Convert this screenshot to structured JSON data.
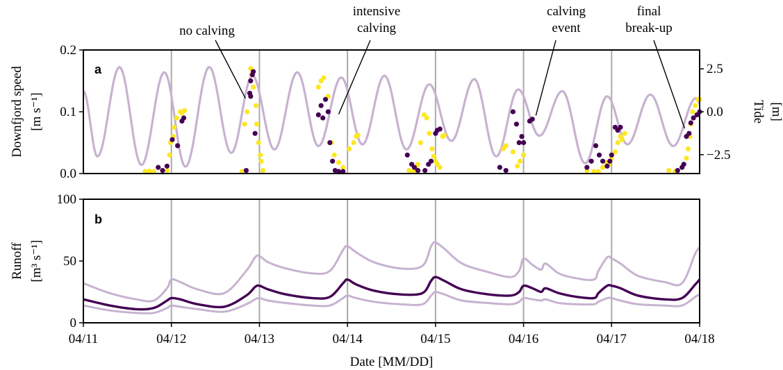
{
  "chart_data": [
    {
      "panel": "a",
      "type": "scatter",
      "xlabel": "",
      "ylabel": "Downfjord speed",
      "ylabel_unit": "[m s⁻¹]",
      "ylabel2": "Tide",
      "ylabel2_unit": "[m]",
      "xlim": [
        0,
        7
      ],
      "ylim": [
        0,
        0.2
      ],
      "y2lim": [
        -3.6,
        3.6
      ],
      "yticks": [
        "0.0",
        "0.1",
        "0.2"
      ],
      "y2ticks": [
        "−2.5",
        "0.0",
        "2.5"
      ],
      "grid": "vertical lines at day boundaries",
      "colors": {
        "tide": "#c7b2d0",
        "series_dark": "#440154",
        "series_yellow": "#fde725"
      },
      "tide_series": {
        "mean": 0.0,
        "half_period_days": 0.2588,
        "extrema": [
          [
            0.0,
            1.2
          ],
          [
            0.16,
            -2.6
          ],
          [
            0.41,
            2.6
          ],
          [
            0.66,
            -3.1
          ],
          [
            0.92,
            2.3
          ],
          [
            1.16,
            -3.2
          ],
          [
            1.43,
            2.6
          ],
          [
            1.68,
            -2.4
          ],
          [
            1.92,
            2.1
          ],
          [
            2.17,
            -2.2
          ],
          [
            2.43,
            2.3
          ],
          [
            2.67,
            -2.0
          ],
          [
            2.93,
            2.0
          ],
          [
            3.17,
            -1.9
          ],
          [
            3.42,
            2.1
          ],
          [
            3.67,
            -2.2
          ],
          [
            3.93,
            1.6
          ],
          [
            4.18,
            -1.7
          ],
          [
            4.44,
            1.9
          ],
          [
            4.69,
            -2.6
          ],
          [
            4.94,
            1.3
          ],
          [
            5.18,
            -1.4
          ],
          [
            5.44,
            1.2
          ],
          [
            5.7,
            -3.0
          ],
          [
            5.95,
            0.9
          ],
          [
            6.18,
            -1.9
          ],
          [
            6.44,
            1.0
          ],
          [
            6.7,
            -2.0
          ],
          [
            6.96,
            0.8
          ],
          [
            7.0,
            0.5
          ]
        ]
      },
      "series": [
        {
          "color": "dark",
          "points": [
            [
              0.85,
              0.01
            ],
            [
              0.9,
              0.005
            ],
            [
              0.95,
              0.012
            ],
            [
              1.01,
              0.055
            ],
            [
              1.07,
              0.045
            ],
            [
              1.12,
              0.085
            ],
            [
              1.14,
              0.09
            ],
            [
              1.85,
              0.005
            ],
            [
              1.89,
              0.13
            ],
            [
              1.9,
              0.125
            ],
            [
              1.9,
              0.15
            ],
            [
              1.92,
              0.16
            ],
            [
              1.93,
              0.165
            ],
            [
              1.95,
              0.065
            ],
            [
              2.67,
              0.095
            ],
            [
              2.7,
              0.11
            ],
            [
              2.72,
              0.09
            ],
            [
              2.75,
              0.12
            ],
            [
              2.78,
              0.1
            ],
            [
              2.8,
              0.05
            ],
            [
              2.83,
              0.02
            ],
            [
              2.86,
              0.005
            ],
            [
              2.9,
              0.002
            ],
            [
              2.95,
              0.003
            ],
            [
              3.68,
              0.03
            ],
            [
              3.73,
              0.015
            ],
            [
              3.76,
              0.01
            ],
            [
              3.8,
              0.005
            ],
            [
              3.88,
              0.005
            ],
            [
              3.92,
              0.015
            ],
            [
              3.95,
              0.02
            ],
            [
              4.0,
              0.065
            ],
            [
              4.02,
              0.07
            ],
            [
              4.05,
              0.072
            ],
            [
              4.73,
              0.01
            ],
            [
              4.8,
              0.005
            ],
            [
              4.88,
              0.1
            ],
            [
              4.92,
              0.08
            ],
            [
              4.95,
              0.05
            ],
            [
              4.98,
              0.06
            ],
            [
              5.0,
              0.05
            ],
            [
              5.07,
              0.085
            ],
            [
              5.1,
              0.088
            ],
            [
              5.72,
              0.01
            ],
            [
              5.77,
              0.02
            ],
            [
              5.82,
              0.045
            ],
            [
              5.86,
              0.03
            ],
            [
              5.9,
              0.02
            ],
            [
              5.95,
              0.012
            ],
            [
              5.98,
              0.02
            ],
            [
              6.0,
              0.03
            ],
            [
              6.04,
              0.075
            ],
            [
              6.07,
              0.07
            ],
            [
              6.1,
              0.075
            ],
            [
              6.75,
              0.005
            ],
            [
              6.8,
              0.01
            ],
            [
              6.82,
              0.015
            ],
            [
              6.85,
              0.06
            ],
            [
              6.88,
              0.065
            ],
            [
              6.9,
              0.082
            ],
            [
              6.93,
              0.09
            ],
            [
              6.97,
              0.095
            ],
            [
              7.0,
              0.1
            ]
          ]
        },
        {
          "color": "yellow",
          "points": [
            [
              0.7,
              0.002
            ],
            [
              0.75,
              0.004
            ],
            [
              0.8,
              0.003
            ],
            [
              0.95,
              0.005
            ],
            [
              0.98,
              0.03
            ],
            [
              0.99,
              0.05
            ],
            [
              1.02,
              0.06
            ],
            [
              1.03,
              0.075
            ],
            [
              1.06,
              0.09
            ],
            [
              1.1,
              0.1
            ],
            [
              1.12,
              0.098
            ],
            [
              1.15,
              0.102
            ],
            [
              1.8,
              0.003
            ],
            [
              1.83,
              0.08
            ],
            [
              1.86,
              0.1
            ],
            [
              1.9,
              0.17
            ],
            [
              1.91,
              0.16
            ],
            [
              1.93,
              0.14
            ],
            [
              1.96,
              0.11
            ],
            [
              1.97,
              0.08
            ],
            [
              1.99,
              0.05
            ],
            [
              2.01,
              0.03
            ],
            [
              2.02,
              0.02
            ],
            [
              2.04,
              0.005
            ],
            [
              2.67,
              0.14
            ],
            [
              2.7,
              0.15
            ],
            [
              2.73,
              0.155
            ],
            [
              2.78,
              0.125
            ],
            [
              2.82,
              0.05
            ],
            [
              2.85,
              0.03
            ],
            [
              2.9,
              0.018
            ],
            [
              2.95,
              0.01
            ],
            [
              3.02,
              0.04
            ],
            [
              3.07,
              0.05
            ],
            [
              3.1,
              0.06
            ],
            [
              3.12,
              0.062
            ],
            [
              3.7,
              0.005
            ],
            [
              3.75,
              0.003
            ],
            [
              3.78,
              0.01
            ],
            [
              3.8,
              0.015
            ],
            [
              3.83,
              0.05
            ],
            [
              3.87,
              0.095
            ],
            [
              3.9,
              0.09
            ],
            [
              3.93,
              0.065
            ],
            [
              3.96,
              0.04
            ],
            [
              3.98,
              0.028
            ],
            [
              4.0,
              0.02
            ],
            [
              4.02,
              0.015
            ],
            [
              4.05,
              0.01
            ],
            [
              4.08,
              0.06
            ],
            [
              4.1,
              0.062
            ],
            [
              4.77,
              0.04
            ],
            [
              4.8,
              0.045
            ],
            [
              4.88,
              0.035
            ],
            [
              4.93,
              0.012
            ],
            [
              4.96,
              0.02
            ],
            [
              5.0,
              0.03
            ],
            [
              5.72,
              0.005
            ],
            [
              5.8,
              0.003
            ],
            [
              5.85,
              0.002
            ],
            [
              5.9,
              0.01
            ],
            [
              5.94,
              0.018
            ],
            [
              5.97,
              0.015
            ],
            [
              6.0,
              0.025
            ],
            [
              6.04,
              0.035
            ],
            [
              6.07,
              0.05
            ],
            [
              6.1,
              0.06
            ],
            [
              6.12,
              0.055
            ],
            [
              6.15,
              0.065
            ],
            [
              6.65,
              0.005
            ],
            [
              6.72,
              0.003
            ],
            [
              6.8,
              0.01
            ],
            [
              6.85,
              0.025
            ],
            [
              6.87,
              0.04
            ],
            [
              6.89,
              0.06
            ],
            [
              6.9,
              0.08
            ],
            [
              6.92,
              0.1
            ],
            [
              6.95,
              0.11
            ],
            [
              6.98,
              0.12
            ],
            [
              7.0,
              0.12
            ]
          ]
        }
      ],
      "annotations": [
        {
          "label": "no calving",
          "x": 1.84,
          "y": 0.122
        },
        {
          "label": "intensive\ncalving",
          "x": 2.9,
          "y": 0.096
        },
        {
          "label": "calving\nevent",
          "x": 5.14,
          "y": 0.094
        },
        {
          "label": "final\nbreak-up",
          "x": 6.83,
          "y": 0.073
        }
      ]
    },
    {
      "panel": "b",
      "type": "line",
      "xlabel": "Date [MM/DD]",
      "ylabel": "Runoff",
      "ylabel_unit": "[m³ s⁻¹]",
      "xlim": [
        0,
        7
      ],
      "ylim": [
        0,
        100
      ],
      "yticks": [
        "0",
        "50",
        "100"
      ],
      "xticks": [
        "04/11",
        "04/12",
        "04/13",
        "04/14",
        "04/15",
        "04/16",
        "04/17",
        "04/18"
      ],
      "grid": "vertical lines at day boundaries",
      "colors": {
        "main": "#440154",
        "band": "#c7b2d0"
      },
      "series": [
        {
          "style": "upper",
          "x": [
            0,
            0.3,
            0.6,
            0.8,
            0.95,
            1.0,
            1.1,
            1.3,
            1.6,
            1.85,
            1.95,
            2.0,
            2.1,
            2.3,
            2.6,
            2.8,
            2.95,
            3.0,
            3.1,
            3.3,
            3.6,
            3.85,
            3.95,
            4.0,
            4.1,
            4.3,
            4.6,
            4.85,
            4.95,
            5.0,
            5.1,
            5.2,
            5.25,
            5.4,
            5.6,
            5.8,
            5.85,
            5.95,
            6.0,
            6.1,
            6.3,
            6.6,
            6.8,
            6.95,
            7.0
          ],
          "y": [
            32,
            24,
            19,
            18,
            28,
            35,
            33,
            27,
            24,
            42,
            53,
            54,
            49,
            44,
            40,
            42,
            59,
            62,
            57,
            49,
            44,
            46,
            62,
            65,
            60,
            48,
            41,
            37,
            42,
            52,
            47,
            43,
            48,
            40,
            36,
            35,
            42,
            53,
            52,
            48,
            38,
            33,
            32,
            56,
            61
          ]
        },
        {
          "style": "main",
          "x": [
            0,
            0.3,
            0.6,
            0.8,
            0.95,
            1.0,
            1.1,
            1.3,
            1.6,
            1.85,
            1.95,
            2.0,
            2.1,
            2.3,
            2.6,
            2.8,
            2.95,
            3.0,
            3.1,
            3.3,
            3.6,
            3.85,
            3.95,
            4.0,
            4.1,
            4.3,
            4.6,
            4.85,
            4.95,
            5.0,
            5.1,
            5.2,
            5.25,
            5.4,
            5.6,
            5.8,
            5.85,
            5.95,
            6.0,
            6.1,
            6.3,
            6.6,
            6.8,
            6.95,
            7.0
          ],
          "y": [
            19,
            14,
            11,
            12,
            18,
            20,
            19,
            15,
            13,
            22,
            29,
            30,
            27,
            23,
            20,
            21,
            32,
            35,
            31,
            26,
            23,
            24,
            34,
            37,
            34,
            27,
            23,
            22,
            25,
            30,
            28,
            25,
            28,
            24,
            21,
            20,
            24,
            30,
            30,
            28,
            22,
            19,
            20,
            31,
            35
          ]
        },
        {
          "style": "lower",
          "x": [
            0,
            0.3,
            0.6,
            0.8,
            0.95,
            1.0,
            1.1,
            1.3,
            1.6,
            1.85,
            1.95,
            2.0,
            2.1,
            2.3,
            2.6,
            2.8,
            2.95,
            3.0,
            3.1,
            3.3,
            3.6,
            3.85,
            3.95,
            4.0,
            4.1,
            4.3,
            4.6,
            4.85,
            4.95,
            5.0,
            5.1,
            5.2,
            5.25,
            5.4,
            5.6,
            5.8,
            5.85,
            5.95,
            6.0,
            6.1,
            6.3,
            6.6,
            6.8,
            6.95,
            7.0
          ],
          "y": [
            14,
            10,
            8,
            8,
            12,
            14,
            13,
            11,
            9,
            15,
            19,
            20,
            18,
            16,
            14,
            14,
            20,
            22,
            20,
            17,
            15,
            15,
            22,
            25,
            23,
            18,
            16,
            15,
            17,
            20,
            19,
            18,
            19,
            16,
            15,
            15,
            17,
            20,
            20,
            18,
            15,
            14,
            14,
            21,
            23
          ]
        }
      ]
    }
  ]
}
